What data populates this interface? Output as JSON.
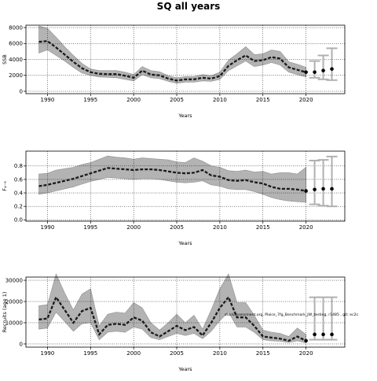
{
  "figure": {
    "title": "SQ all years",
    "annotation": "stockassessment.org, Plaice_7fg_Benchmark_JW_testing, r1485 , git: ec2c"
  },
  "chart_data": [
    {
      "type": "line",
      "name": "SSB panel",
      "ylabel": "SSB",
      "xlabel": "Years",
      "xlim": [
        1987.5,
        2024.5
      ],
      "ylim": [
        -300,
        8300
      ],
      "xticks": [
        1990,
        1995,
        2000,
        2005,
        2010,
        2015,
        2020
      ],
      "yticks": [
        0,
        2000,
        4000,
        6000,
        8000
      ],
      "ytick_labels": [
        "0",
        "2000",
        "4000",
        "6000",
        "8000"
      ],
      "grid": true,
      "x": [
        1989,
        1990,
        1991,
        1992,
        1993,
        1994,
        1995,
        1996,
        1997,
        1998,
        1999,
        2000,
        2001,
        2002,
        2003,
        2004,
        2005,
        2006,
        2007,
        2008,
        2009,
        2010,
        2011,
        2012,
        2013,
        2014,
        2015,
        2016,
        2017,
        2018,
        2019,
        2020
      ],
      "values": [
        6200,
        6300,
        5500,
        4600,
        3700,
        2900,
        2400,
        2200,
        2150,
        2150,
        1950,
        1700,
        2600,
        2100,
        2000,
        1600,
        1350,
        1500,
        1500,
        1700,
        1600,
        1900,
        3200,
        3900,
        4500,
        3800,
        3900,
        4300,
        4100,
        3000,
        2700,
        2400
      ],
      "lower": [
        4800,
        5200,
        4500,
        3800,
        3000,
        2300,
        2000,
        1800,
        1750,
        1700,
        1500,
        1300,
        2100,
        1700,
        1600,
        1250,
        1000,
        1150,
        1150,
        1300,
        1250,
        1500,
        2600,
        3200,
        3800,
        3100,
        3300,
        3600,
        3300,
        2400,
        2100,
        1800
      ],
      "upper": [
        8200,
        7900,
        6800,
        5600,
        4500,
        3500,
        2800,
        2600,
        2600,
        2600,
        2400,
        2100,
        3100,
        2600,
        2450,
        1950,
        1700,
        1850,
        1850,
        2100,
        1950,
        2400,
        3900,
        4700,
        5600,
        4600,
        4700,
        5200,
        5000,
        3700,
        3400,
        3000
      ],
      "forecast": [
        {
          "x": 2021,
          "value": 2400,
          "lower": 1700,
          "upper": 3800
        },
        {
          "x": 2022,
          "value": 2600,
          "lower": 1500,
          "upper": 4500
        },
        {
          "x": 2023,
          "value": 2800,
          "lower": 1400,
          "upper": 5400
        }
      ]
    },
    {
      "type": "line",
      "name": "F panel",
      "ylabel": "F₄₋₉",
      "xlabel": "Years",
      "xlim": [
        1987.5,
        2024.5
      ],
      "ylim": [
        -0.02,
        1.02
      ],
      "xticks": [
        1990,
        1995,
        2000,
        2005,
        2010,
        2015,
        2020
      ],
      "yticks": [
        0.0,
        0.2,
        0.4,
        0.6,
        0.8
      ],
      "ytick_labels": [
        "0.0",
        "0.2",
        "0.4",
        "0.6",
        "0.8"
      ],
      "grid": true,
      "x": [
        1989,
        1990,
        1991,
        1992,
        1993,
        1994,
        1995,
        1996,
        1997,
        1998,
        1999,
        2000,
        2001,
        2002,
        2003,
        2004,
        2005,
        2006,
        2007,
        2008,
        2009,
        2010,
        2011,
        2012,
        2013,
        2014,
        2015,
        2016,
        2017,
        2018,
        2019,
        2020
      ],
      "values": [
        0.5,
        0.52,
        0.55,
        0.58,
        0.61,
        0.65,
        0.69,
        0.73,
        0.77,
        0.76,
        0.75,
        0.74,
        0.75,
        0.75,
        0.74,
        0.72,
        0.7,
        0.69,
        0.7,
        0.74,
        0.66,
        0.64,
        0.59,
        0.58,
        0.59,
        0.56,
        0.54,
        0.49,
        0.46,
        0.46,
        0.45,
        0.43
      ],
      "lower": [
        0.38,
        0.4,
        0.43,
        0.46,
        0.49,
        0.53,
        0.57,
        0.6,
        0.63,
        0.62,
        0.61,
        0.6,
        0.61,
        0.61,
        0.6,
        0.58,
        0.56,
        0.55,
        0.56,
        0.58,
        0.52,
        0.5,
        0.46,
        0.45,
        0.45,
        0.42,
        0.38,
        0.33,
        0.3,
        0.28,
        0.27,
        0.26
      ],
      "upper": [
        0.68,
        0.69,
        0.74,
        0.76,
        0.78,
        0.82,
        0.85,
        0.9,
        0.95,
        0.93,
        0.92,
        0.9,
        0.92,
        0.91,
        0.9,
        0.89,
        0.86,
        0.85,
        0.92,
        0.87,
        0.8,
        0.78,
        0.73,
        0.72,
        0.74,
        0.71,
        0.72,
        0.68,
        0.7,
        0.7,
        0.68,
        0.78
      ],
      "forecast": [
        {
          "x": 2021,
          "value": 0.45,
          "lower": 0.23,
          "upper": 0.88
        },
        {
          "x": 2022,
          "value": 0.46,
          "lower": 0.21,
          "upper": 0.89
        },
        {
          "x": 2023,
          "value": 0.46,
          "lower": 0.2,
          "upper": 0.94
        }
      ]
    },
    {
      "type": "line",
      "name": "Recruits panel",
      "ylabel": "Recruits (age 1)",
      "xlabel": "Years",
      "xlim": [
        1987.5,
        2024.5
      ],
      "ylim": [
        -1500,
        31500
      ],
      "xticks": [
        1990,
        1995,
        2000,
        2005,
        2010,
        2015,
        2020
      ],
      "yticks": [
        0,
        10000,
        20000,
        30000
      ],
      "ytick_labels": [
        "0",
        "10000",
        "20000",
        "30000"
      ],
      "grid": true,
      "x": [
        1989,
        1990,
        1991,
        1992,
        1993,
        1994,
        1995,
        1996,
        1997,
        1998,
        1999,
        2000,
        2001,
        2002,
        2003,
        2004,
        2005,
        2006,
        2007,
        2008,
        2009,
        2010,
        2011,
        2012,
        2013,
        2014,
        2015,
        2016,
        2017,
        2018,
        2019,
        2020
      ],
      "values": [
        11500,
        12000,
        22000,
        16000,
        10000,
        15500,
        17000,
        4500,
        9000,
        9500,
        9000,
        12500,
        11000,
        5500,
        3500,
        6000,
        8500,
        6500,
        8000,
        4000,
        10000,
        17000,
        22000,
        12500,
        12500,
        8500,
        3500,
        3000,
        2500,
        1500,
        3500,
        1500
      ],
      "lower": [
        7000,
        7500,
        15000,
        10500,
        6000,
        9500,
        10000,
        2000,
        5500,
        6000,
        5500,
        8000,
        7000,
        3000,
        2000,
        3500,
        5000,
        4000,
        5000,
        2500,
        6000,
        11000,
        15000,
        8000,
        8000,
        5500,
        2000,
        1500,
        1300,
        700,
        1500,
        500
      ],
      "upper": [
        18000,
        18500,
        33000,
        24000,
        16000,
        23500,
        26000,
        8500,
        14000,
        15000,
        14500,
        19500,
        17000,
        10000,
        6500,
        10000,
        14000,
        10000,
        13500,
        7000,
        16000,
        26000,
        33000,
        19500,
        19500,
        13500,
        6500,
        5500,
        5000,
        3500,
        7500,
        4500
      ],
      "forecast": [
        {
          "x": 2021,
          "value": 4500,
          "lower": 2000,
          "upper": 22000
        },
        {
          "x": 2022,
          "value": 4500,
          "lower": 2000,
          "upper": 22000
        },
        {
          "x": 2023,
          "value": 4500,
          "lower": 2000,
          "upper": 22000
        }
      ]
    }
  ]
}
